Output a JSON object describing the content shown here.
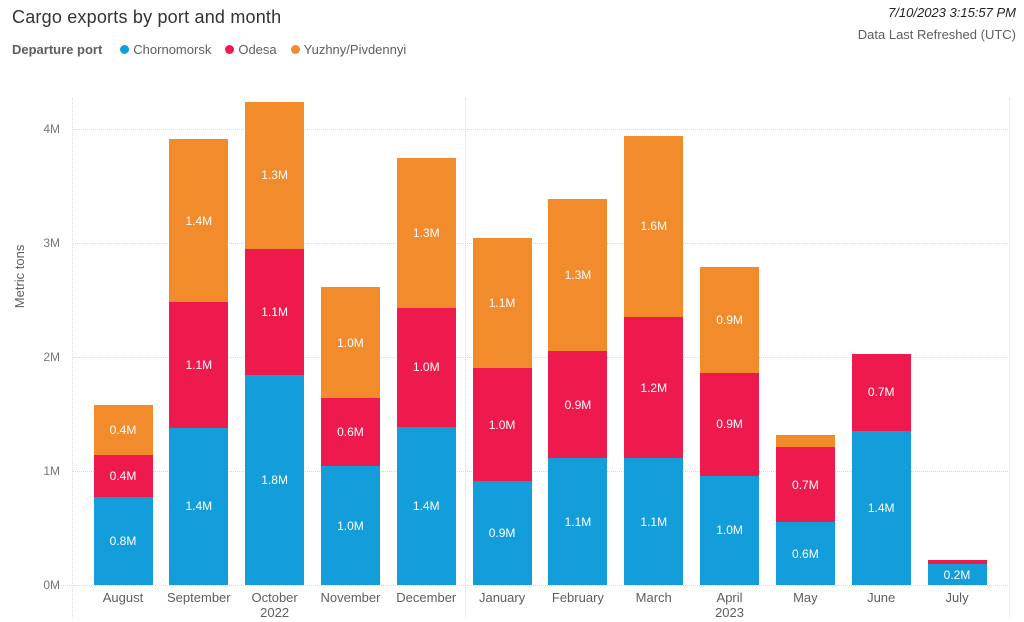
{
  "header": {
    "title": "Cargo exports by port and month",
    "refresh_time": "7/10/2023 3:15:57 PM",
    "refresh_label": "Data Last Refreshed (UTC)"
  },
  "legend": {
    "title": "Departure port",
    "items": [
      {
        "label": "Chornomorsk",
        "color": "#149DDB"
      },
      {
        "label": "Odesa",
        "color": "#EE1A4D"
      },
      {
        "label": "Yuzhny/Pivdennyi",
        "color": "#F18B2C"
      }
    ]
  },
  "chart_data": {
    "type": "bar",
    "stacked": true,
    "title": "Cargo exports by port and month",
    "xlabel": "",
    "ylabel": "Metric tons",
    "ylim": [
      0,
      4.3
    ],
    "yticks": [
      "0M",
      "1M",
      "2M",
      "3M",
      "4M"
    ],
    "grid": "dotted",
    "legend_position": "top",
    "categories": [
      {
        "label": "August",
        "sublabel": ""
      },
      {
        "label": "September",
        "sublabel": ""
      },
      {
        "label": "October",
        "sublabel": "2022"
      },
      {
        "label": "November",
        "sublabel": ""
      },
      {
        "label": "December",
        "sublabel": ""
      },
      {
        "label": "January",
        "sublabel": ""
      },
      {
        "label": "February",
        "sublabel": ""
      },
      {
        "label": "March",
        "sublabel": ""
      },
      {
        "label": "April",
        "sublabel": "2023"
      },
      {
        "label": "May",
        "sublabel": ""
      },
      {
        "label": "June",
        "sublabel": ""
      },
      {
        "label": "July",
        "sublabel": ""
      }
    ],
    "series": [
      {
        "name": "Chornomorsk",
        "color": "#149DDB",
        "values": [
          0.77,
          1.38,
          1.84,
          1.04,
          1.39,
          0.91,
          1.11,
          1.11,
          0.96,
          0.55,
          1.35,
          0.18
        ],
        "labels": [
          "0.8M",
          "1.4M",
          "1.8M",
          "1.0M",
          "1.4M",
          "0.9M",
          "1.1M",
          "1.1M",
          "1.0M",
          "0.6M",
          "1.4M",
          "0.2M"
        ]
      },
      {
        "name": "Odesa",
        "color": "#EE1A4D",
        "values": [
          0.37,
          1.1,
          1.11,
          0.6,
          1.04,
          0.99,
          0.94,
          1.24,
          0.9,
          0.66,
          0.68,
          0.04
        ],
        "labels": [
          "0.4M",
          "1.1M",
          "1.1M",
          "0.6M",
          "1.0M",
          "1.0M",
          "0.9M",
          "1.2M",
          "0.9M",
          "0.7M",
          "0.7M",
          ""
        ]
      },
      {
        "name": "Yuzhny/Pivdennyi",
        "color": "#F18B2C",
        "values": [
          0.44,
          1.43,
          1.29,
          0.97,
          1.32,
          1.14,
          1.34,
          1.59,
          0.93,
          0.11,
          0,
          0
        ],
        "labels": [
          "0.4M",
          "1.4M",
          "1.3M",
          "1.0M",
          "1.3M",
          "1.1M",
          "1.3M",
          "1.6M",
          "0.9M",
          "",
          "",
          ""
        ]
      }
    ]
  }
}
